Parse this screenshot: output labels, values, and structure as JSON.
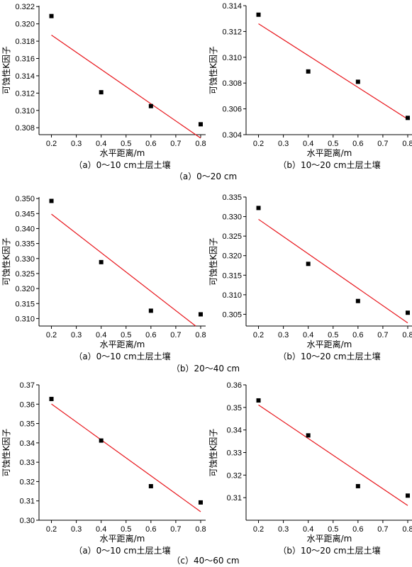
{
  "figure": {
    "group_captions": [
      "（a）0～20 cm",
      "（b）20～40 cm",
      "（c）40～60 cm"
    ]
  },
  "chart_data": [
    {
      "type": "scatter",
      "panel": "（a）0～10 cm土层土壤",
      "xlabel": "水平距离/m",
      "ylabel": "可蚀性K因子",
      "xlim": [
        0.15,
        0.82
      ],
      "ylim": [
        0.3072,
        0.3221
      ],
      "xticks": [
        "0.2",
        "0.3",
        "0.4",
        "0.5",
        "0.6",
        "0.7",
        "0.8"
      ],
      "yticks": [
        "0.308",
        "0.310",
        "0.312",
        "0.314",
        "0.316",
        "0.318",
        "0.320",
        "0.322"
      ],
      "points": {
        "x": [
          0.2,
          0.4,
          0.6,
          0.8
        ],
        "y": [
          0.3209,
          0.3121,
          0.3105,
          0.3084
        ]
      },
      "fit": {
        "x": [
          0.2,
          0.8
        ],
        "y": [
          0.3187,
          0.3068
        ]
      },
      "colors": {
        "points": "#000000",
        "fit": "#e8151b"
      }
    },
    {
      "type": "scatter",
      "panel": "（b）10～20 cm土层土壤",
      "xlabel": "水平距离/m",
      "ylabel": "可蚀性K因子",
      "xlim": [
        0.15,
        0.82
      ],
      "ylim": [
        0.304,
        0.314
      ],
      "xticks": [
        "0.2",
        "0.3",
        "0.4",
        "0.5",
        "0.6",
        "0.7",
        "0.8"
      ],
      "yticks": [
        "0.304",
        "0.306",
        "0.308",
        "0.310",
        "0.312",
        "0.314"
      ],
      "points": {
        "x": [
          0.2,
          0.4,
          0.6,
          0.8
        ],
        "y": [
          0.3133,
          0.3089,
          0.3081,
          0.3053
        ]
      },
      "fit": {
        "x": [
          0.2,
          0.8
        ],
        "y": [
          0.3126,
          0.3052
        ]
      },
      "colors": {
        "points": "#000000",
        "fit": "#e8151b"
      }
    },
    {
      "type": "scatter",
      "panel": "（a）0～10 cm土层土壤",
      "xlabel": "水平距离/m",
      "ylabel": "可蚀性K因子",
      "xlim": [
        0.15,
        0.82
      ],
      "ylim": [
        0.3075,
        0.3505
      ],
      "xticks": [
        "0.2",
        "0.3",
        "0.4",
        "0.5",
        "0.6",
        "0.7",
        "0.8"
      ],
      "yticks": [
        "0.310",
        "0.315",
        "0.320",
        "0.325",
        "0.330",
        "0.335",
        "0.340",
        "0.345",
        "0.350"
      ],
      "points": {
        "x": [
          0.2,
          0.4,
          0.6,
          0.8
        ],
        "y": [
          0.3492,
          0.3288,
          0.3126,
          0.3114
        ]
      },
      "fit": {
        "x": [
          0.2,
          0.78
        ],
        "y": [
          0.3448,
          0.3075
        ]
      },
      "colors": {
        "points": "#000000",
        "fit": "#e8151b"
      }
    },
    {
      "type": "scatter",
      "panel": "（b）10～20 cm土层土壤",
      "xlabel": "水平距离/m",
      "ylabel": "可蚀性K因子",
      "xlim": [
        0.15,
        0.82
      ],
      "ylim": [
        0.302,
        0.335
      ],
      "xticks": [
        "0.2",
        "0.3",
        "0.4",
        "0.5",
        "0.6",
        "0.7",
        "0.8"
      ],
      "yticks": [
        "0.305",
        "0.310",
        "0.315",
        "0.320",
        "0.325",
        "0.330",
        "0.335"
      ],
      "points": {
        "x": [
          0.2,
          0.4,
          0.6,
          0.8
        ],
        "y": [
          0.3322,
          0.3179,
          0.3084,
          0.3054
        ]
      },
      "fit": {
        "x": [
          0.2,
          0.8
        ],
        "y": [
          0.3293,
          0.3028
        ]
      },
      "colors": {
        "points": "#000000",
        "fit": "#e8151b"
      }
    },
    {
      "type": "scatter",
      "panel": "（a）0～10 cm土层土壤",
      "xlabel": "水平距离/m",
      "ylabel": "可蚀性K因子",
      "xlim": [
        0.15,
        0.82
      ],
      "ylim": [
        0.3,
        0.37
      ],
      "xticks": [
        "0.2",
        "0.3",
        "0.4",
        "0.5",
        "0.6",
        "0.7",
        "0.8"
      ],
      "yticks": [
        "0.30",
        "0.31",
        "0.32",
        "0.33",
        "0.34",
        "0.35",
        "0.36",
        "0.37"
      ],
      "points": {
        "x": [
          0.2,
          0.4,
          0.6,
          0.8
        ],
        "y": [
          0.3627,
          0.3412,
          0.3176,
          0.3092
        ]
      },
      "fit": {
        "x": [
          0.2,
          0.8
        ],
        "y": [
          0.3601,
          0.3044
        ]
      },
      "colors": {
        "points": "#000000",
        "fit": "#e8151b"
      }
    },
    {
      "type": "scatter",
      "panel": "（b）10～20 cm土层土壤",
      "xlabel": "水平距离/m",
      "ylabel": "可蚀性K因子",
      "xlim": [
        0.15,
        0.82
      ],
      "ylim": [
        0.3,
        0.36
      ],
      "xticks": [
        "0.2",
        "0.3",
        "0.4",
        "0.5",
        "0.6",
        "0.7",
        "0.8"
      ],
      "yticks": [
        "0.31",
        "0.32",
        "0.33",
        "0.34",
        "0.35",
        "0.36"
      ],
      "points": {
        "x": [
          0.2,
          0.4,
          0.6,
          0.8
        ],
        "y": [
          0.3531,
          0.3376,
          0.3151,
          0.3109
        ]
      },
      "fit": {
        "x": [
          0.2,
          0.8
        ],
        "y": [
          0.3511,
          0.3065
        ]
      },
      "colors": {
        "points": "#000000",
        "fit": "#e8151b"
      }
    }
  ]
}
